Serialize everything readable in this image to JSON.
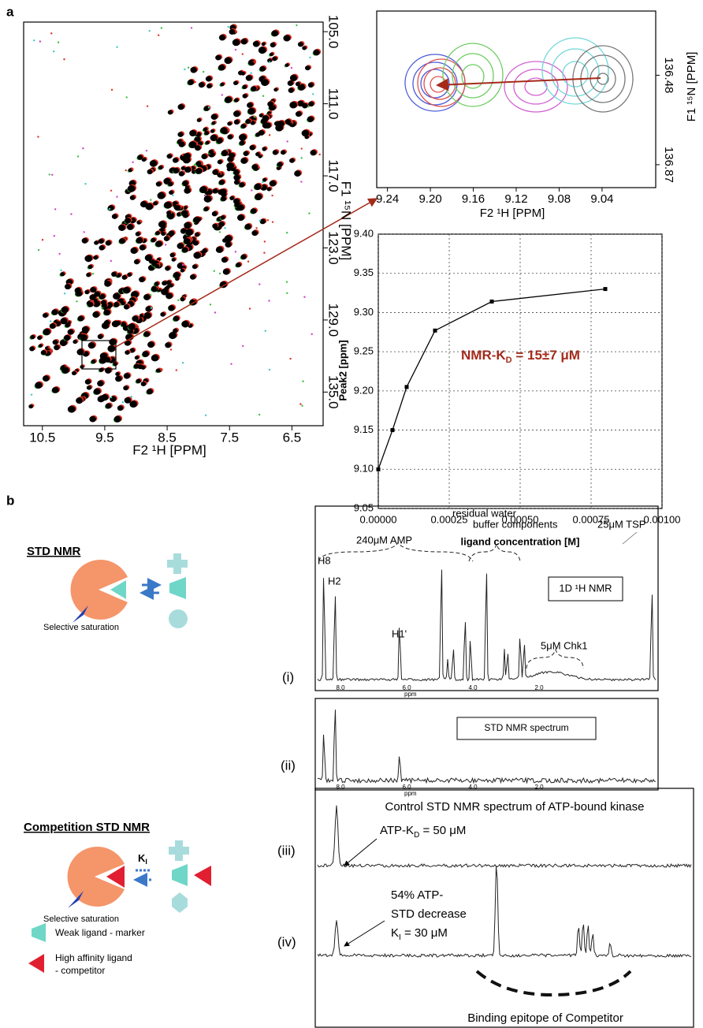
{
  "panel_labels": [
    "a",
    "b"
  ],
  "hsqc": {
    "x_title": "F2 ¹H [PPM]",
    "y_title": "F1 ¹⁵N [PPM]",
    "xlim": [
      10.8,
      6.0
    ],
    "ylim": [
      104.2,
      137.8
    ],
    "xticks": [
      10.5,
      9.5,
      8.5,
      7.5,
      6.5
    ],
    "yticks": [
      {
        "value": 105,
        "label": "105.0"
      },
      {
        "value": 111,
        "label": "111.0"
      },
      {
        "value": 117,
        "label": "117.0"
      },
      {
        "value": 123,
        "label": "123.0"
      },
      {
        "value": 129,
        "label": "129.0"
      },
      {
        "value": 135,
        "label": "135.0"
      }
    ]
  },
  "zoom": {
    "x_title": "F2 ¹H [PPM]",
    "y_title": "F1 ¹⁵N [PPM]",
    "xlim": [
      9.25,
      8.99
    ],
    "ylim": [
      136.2,
      136.97
    ],
    "xticks": [
      9.24,
      {
        "value": 9.2,
        "label": "9.20"
      },
      9.16,
      9.12,
      9.08,
      9.04
    ],
    "yticks": [
      136.48,
      136.87
    ]
  },
  "chart_data": {
    "type": "scatter",
    "x_label": "ligand concentration [M]",
    "y_label": "Peak2 [ppm]",
    "annotation": [
      "NMR-K",
      "D",
      " = 15±7 μM"
    ],
    "x": [
      0,
      5e-05,
      0.0001,
      0.0002,
      0.0004,
      0.0008
    ],
    "values": [
      9.1,
      9.15,
      9.205,
      9.277,
      9.314,
      9.33
    ],
    "color": "#000000",
    "xlim": [
      0,
      0.001
    ],
    "ylim": [
      9.05,
      9.4
    ],
    "xticks": [
      {
        "value": 0,
        "label": "0.00000"
      },
      0.00025,
      {
        "value": 0.0005,
        "label": "0.00050"
      },
      0.00075,
      {
        "value": 0.001,
        "label": "0.00100"
      }
    ],
    "yticks": [
      9.05,
      {
        "value": 9.1,
        "label": "9.10"
      },
      9.15,
      {
        "value": 9.2,
        "label": "9.20"
      },
      9.25,
      {
        "value": 9.3,
        "label": "9.30"
      },
      9.35,
      {
        "value": 9.4,
        "label": "9.40"
      }
    ],
    "grid": true
  },
  "std": {
    "title": "STD NMR",
    "saturation": "Selective saturation",
    "competition_title": "Competition STD NMR",
    "competition_saturation": "Selective saturation",
    "ki": [
      "K",
      "I"
    ],
    "legend": [
      "Weak ligand - marker",
      "High affinity ligand",
      "- competitor"
    ]
  },
  "spectra": {
    "labels": [
      "(i)",
      "(ii)",
      "(iii)",
      "(iv)"
    ],
    "i": {
      "amp": "240μM AMP",
      "water": "residual water",
      "buffer": "buffer components",
      "tsp": "25μM TSP",
      "h8": "H8",
      "h2": "H2",
      "h1": "H1'",
      "box": "1D ¹H NMR",
      "chk1": "5μM Chk1",
      "ticks": [
        "8.0",
        "6.0",
        "4.0",
        "2.0"
      ],
      "unit": "ppm"
    },
    "ii": {
      "box": "STD NMR spectrum",
      "ticks": [
        "8.0",
        "6.0",
        "4.0",
        "2.0"
      ],
      "unit": "ppm"
    },
    "iii": {
      "title": "Control STD NMR spectrum of ATP-bound kinase",
      "kd": [
        "ATP-K",
        "D",
        " = 50 μM"
      ]
    },
    "iv": {
      "line1": "54% ATP-",
      "line2": "STD decrease",
      "ki": [
        "K",
        "I",
        " = 30 μM"
      ],
      "epitope": "Binding epitope of Competitor"
    }
  }
}
